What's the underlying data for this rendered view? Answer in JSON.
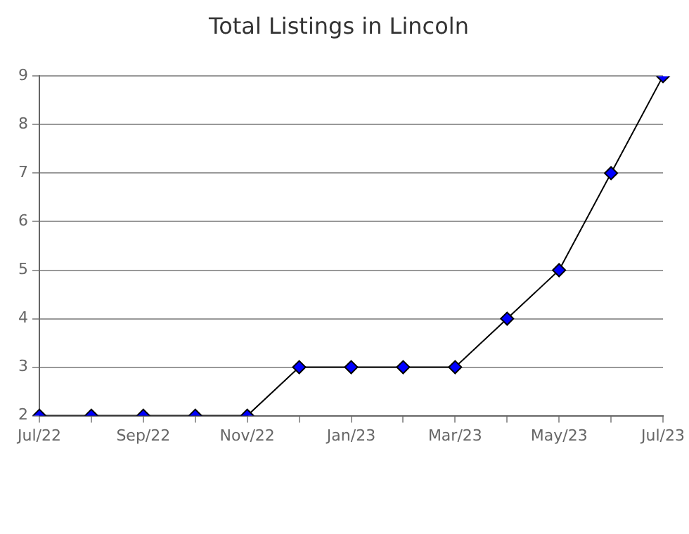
{
  "chart_data": {
    "type": "line",
    "title": "Total Listings in Lincoln",
    "categories": [
      "Jul/22",
      null,
      "Sep/22",
      null,
      "Nov/22",
      null,
      "Jan/23",
      null,
      "Mar/23",
      null,
      "May/23",
      null,
      "Jul/23"
    ],
    "series": [
      {
        "color": "#000000",
        "values": [
          2,
          2,
          2,
          2,
          2,
          3,
          3,
          3,
          3,
          4,
          5,
          7,
          9
        ]
      }
    ],
    "ylim": [
      2,
      9
    ],
    "yticks": [
      2,
      3,
      4,
      5,
      6,
      7,
      8,
      9
    ],
    "grid": "y",
    "legend": false,
    "marker": "diamond",
    "line_style": "solid"
  }
}
